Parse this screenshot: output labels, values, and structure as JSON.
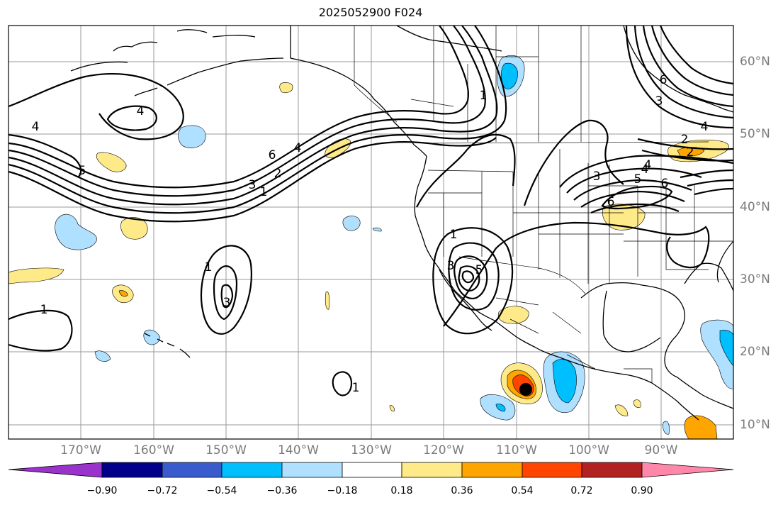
{
  "title": "2025052900 F024",
  "lat_labels": [
    "60°N",
    "50°N",
    "40°N",
    "30°N",
    "20°N",
    "10°N"
  ],
  "lon_labels": [
    "170°W",
    "160°W",
    "150°W",
    "140°W",
    "130°W",
    "120°W",
    "110°W",
    "100°W",
    "90°W"
  ],
  "colorbar": {
    "tick_labels": [
      "−0.90",
      "−0.72",
      "−0.54",
      "−0.36",
      "−0.18",
      "0.18",
      "0.36",
      "0.54",
      "0.72",
      "0.90"
    ],
    "colors": [
      "#9933cc",
      "#00008b",
      "#3a5bcd",
      "#00bfff",
      "#b0e0ff",
      "#ffffff",
      "#ffea8a",
      "#ffa500",
      "#ff4500",
      "#b22222",
      "#ff88aa"
    ]
  },
  "contour_labels": [
    "4",
    "4",
    "5",
    "6",
    "4",
    "3",
    "2",
    "1",
    "1",
    "1",
    "1",
    "3",
    "1",
    "3",
    "5",
    "4",
    "6",
    "6",
    "5",
    "4",
    "3",
    "2",
    "6",
    "4",
    "3",
    "2",
    "1"
  ]
}
